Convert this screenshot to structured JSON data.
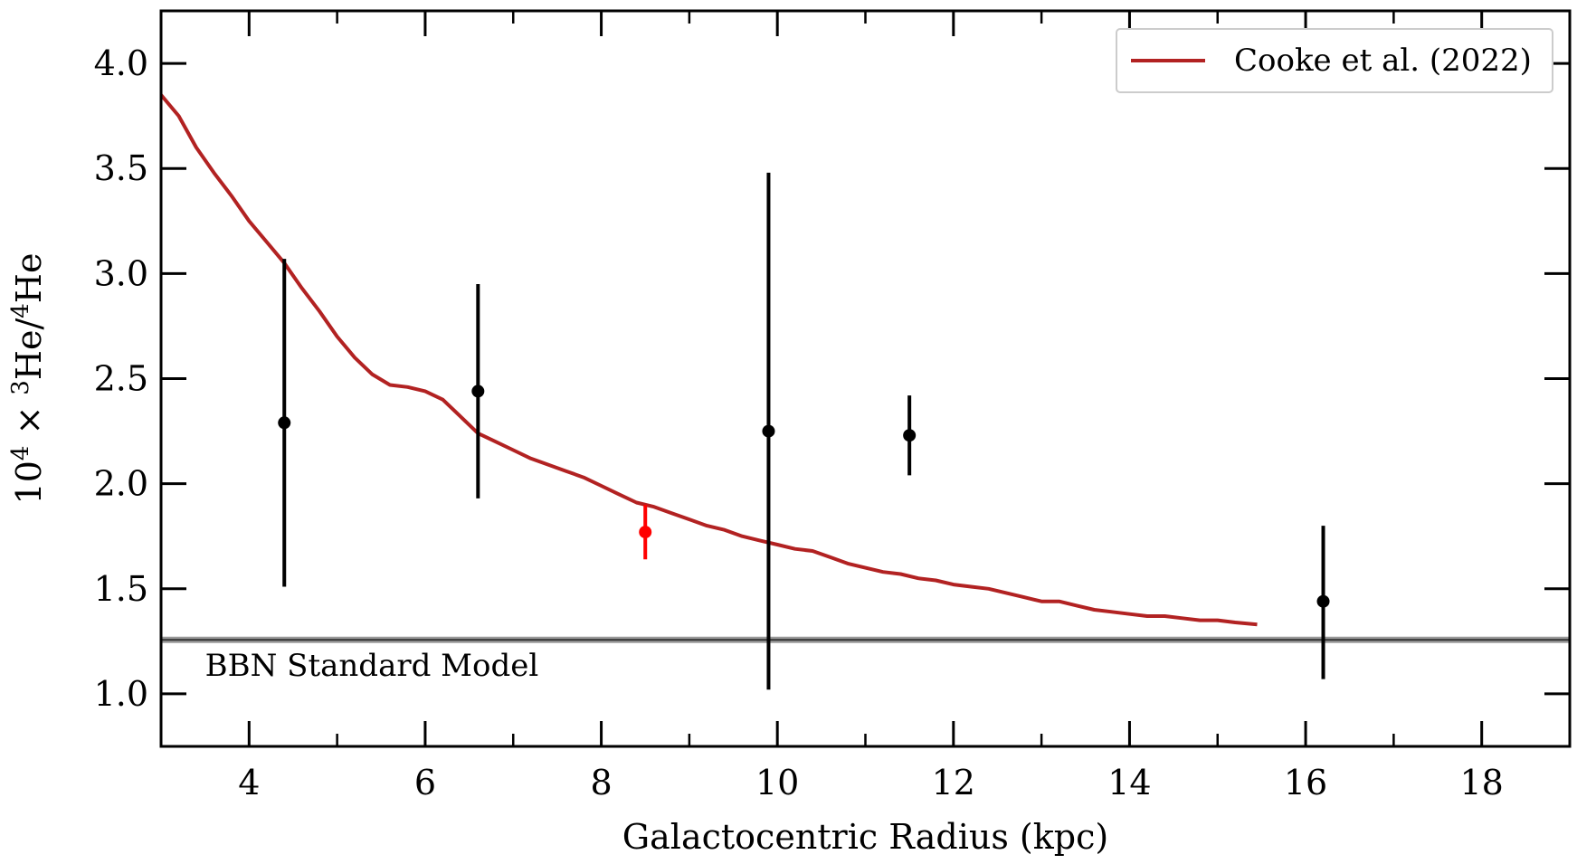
{
  "chart_data": {
    "type": "scatter",
    "title": "",
    "xlabel": "Galactocentric Radius (kpc)",
    "ylabel": {
      "prefix": "10",
      "prefix_exp": "4",
      "times": "×",
      "num_exp": "3",
      "num": "He/",
      "den_exp": "4",
      "den": "He"
    },
    "xlim": [
      3,
      19
    ],
    "ylim": [
      0.75,
      4.25
    ],
    "x_ticks_major": [
      4,
      6,
      8,
      10,
      12,
      14,
      16,
      18
    ],
    "x_tick_labels": [
      "4",
      "6",
      "8",
      "10",
      "12",
      "14",
      "16",
      "18"
    ],
    "x_ticks_minor": [
      5,
      7,
      9,
      11,
      13,
      15,
      17
    ],
    "y_ticks": [
      1.0,
      1.5,
      2.0,
      2.5,
      3.0,
      3.5,
      4.0
    ],
    "y_tick_labels": [
      "1.0",
      "1.5",
      "2.0",
      "2.5",
      "3.0",
      "3.5",
      "4.0"
    ],
    "grid": false,
    "legend": {
      "position": "top-right",
      "entries": [
        {
          "label": "Cooke et al. (2022)",
          "color": "#b22222"
        }
      ]
    },
    "model_curve": {
      "name": "Cooke et al. (2022)",
      "color": "#b22222",
      "x": [
        3.0,
        3.2,
        3.4,
        3.6,
        3.8,
        4.0,
        4.2,
        4.4,
        4.6,
        4.8,
        5.0,
        5.2,
        5.4,
        5.6,
        5.8,
        6.0,
        6.2,
        6.4,
        6.6,
        6.8,
        7.0,
        7.2,
        7.4,
        7.6,
        7.8,
        8.0,
        8.2,
        8.4,
        8.6,
        8.8,
        9.0,
        9.2,
        9.4,
        9.6,
        9.8,
        10.0,
        10.2,
        10.4,
        10.6,
        10.8,
        11.0,
        11.2,
        11.4,
        11.6,
        11.8,
        12.0,
        12.2,
        12.4,
        12.6,
        12.8,
        13.0,
        13.2,
        13.4,
        13.6,
        13.8,
        14.0,
        14.2,
        14.4,
        14.6,
        14.8,
        15.0,
        15.2,
        15.45
      ],
      "y": [
        3.85,
        3.75,
        3.6,
        3.48,
        3.37,
        3.25,
        3.15,
        3.05,
        2.93,
        2.82,
        2.7,
        2.6,
        2.52,
        2.47,
        2.46,
        2.44,
        2.4,
        2.32,
        2.24,
        2.2,
        2.16,
        2.12,
        2.09,
        2.06,
        2.03,
        1.99,
        1.95,
        1.91,
        1.89,
        1.86,
        1.83,
        1.8,
        1.78,
        1.75,
        1.73,
        1.71,
        1.69,
        1.68,
        1.65,
        1.62,
        1.6,
        1.58,
        1.57,
        1.55,
        1.54,
        1.52,
        1.51,
        1.5,
        1.48,
        1.46,
        1.44,
        1.44,
        1.42,
        1.4,
        1.39,
        1.38,
        1.37,
        1.37,
        1.36,
        1.35,
        1.35,
        1.34,
        1.33
      ]
    },
    "observations": [
      {
        "x": 4.4,
        "y": 2.29,
        "lo": 1.51,
        "hi": 3.07,
        "color": "#000000"
      },
      {
        "x": 6.6,
        "y": 2.44,
        "lo": 1.93,
        "hi": 2.95,
        "color": "#000000"
      },
      {
        "x": 8.5,
        "y": 1.77,
        "lo": 1.64,
        "hi": 1.9,
        "color": "#ff0000"
      },
      {
        "x": 9.9,
        "y": 2.25,
        "lo": 1.02,
        "hi": 3.48,
        "color": "#000000"
      },
      {
        "x": 11.5,
        "y": 2.23,
        "lo": 2.04,
        "hi": 2.42,
        "color": "#000000"
      },
      {
        "x": 16.2,
        "y": 1.44,
        "lo": 1.07,
        "hi": 1.8,
        "color": "#000000"
      }
    ],
    "bbn_band": {
      "label": "BBN Standard Model",
      "center": 1.257,
      "lo": 1.242,
      "hi": 1.272,
      "color": "#555555"
    }
  }
}
